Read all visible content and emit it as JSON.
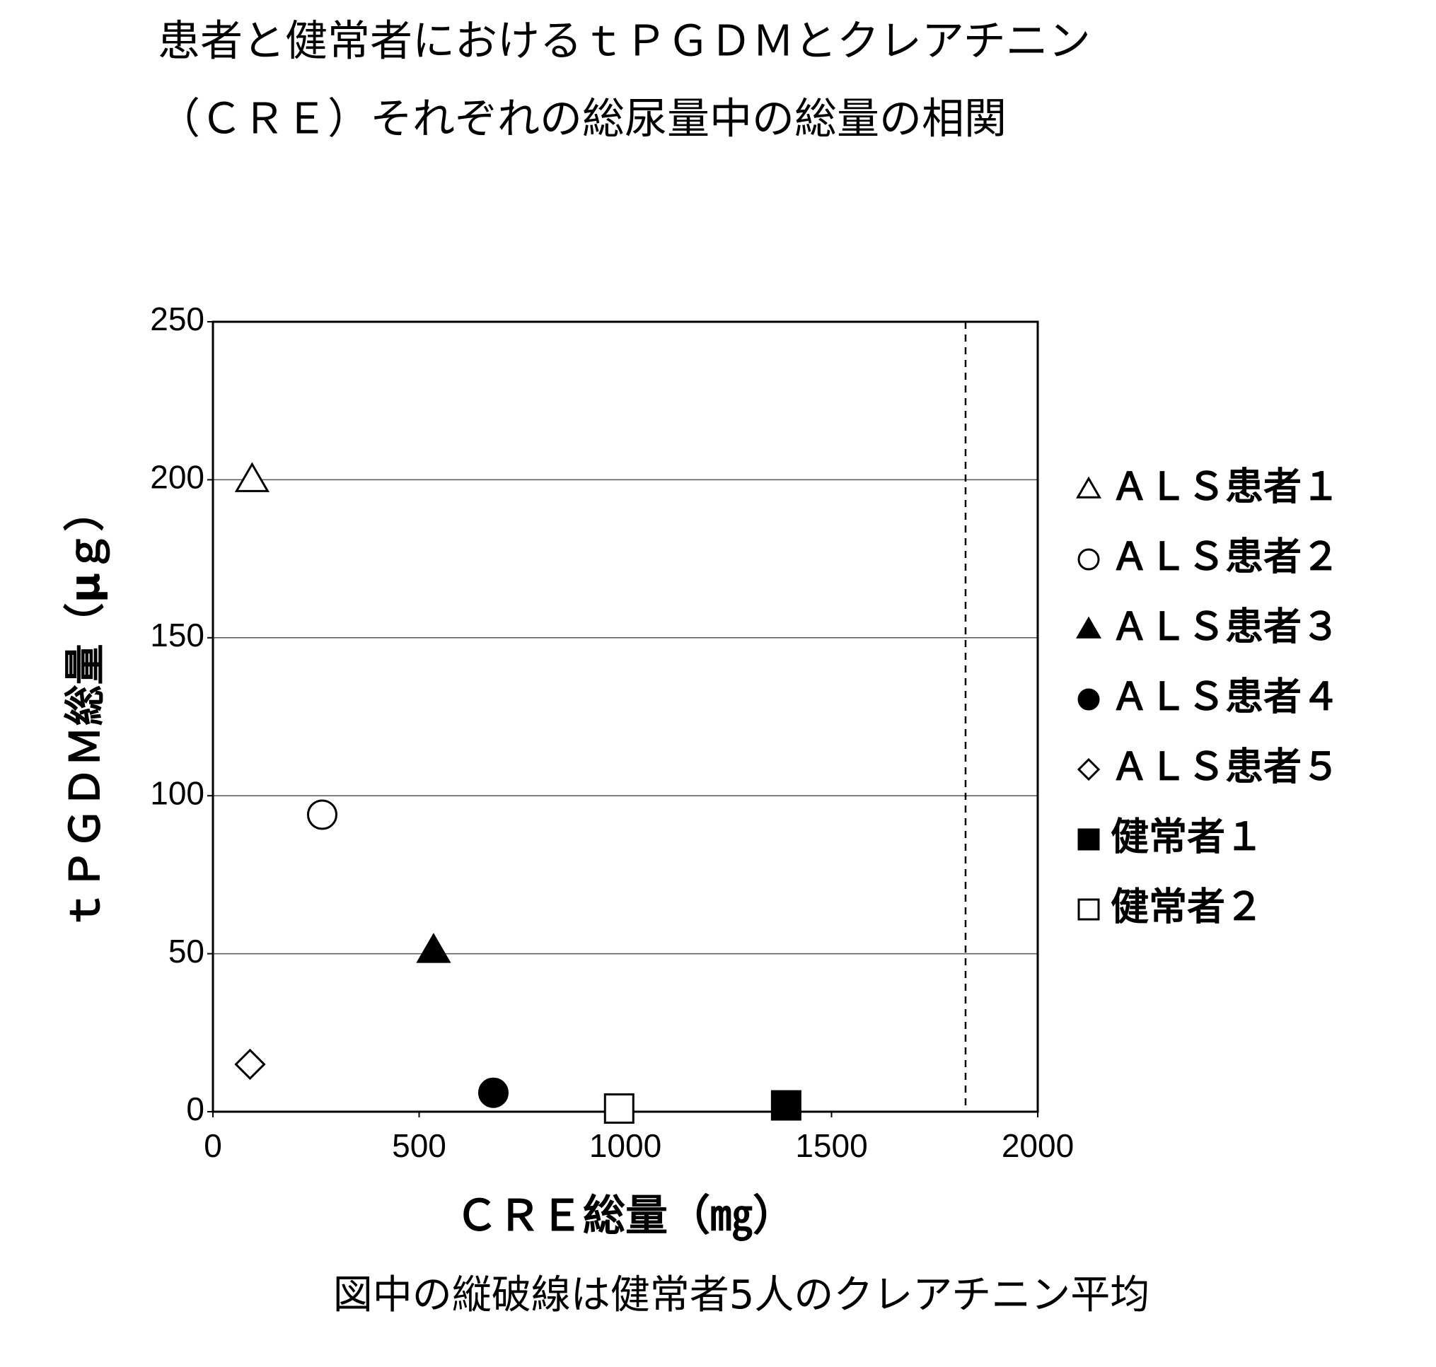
{
  "chart_data": {
    "type": "scatter",
    "title": [
      "患者と健常者におけるｔＰＧＤＭとクレアチニン",
      "（ＣＲＥ）それぞれの総尿量中の総量の相関"
    ],
    "x_label": "ＣＲＥ総量（㎎）",
    "y_label": "ｔＰＧＤＭ総量（μｇ）",
    "note": "図中の縦破線は健常者5人のクレアチニン平均",
    "xlim": [
      0,
      2000
    ],
    "xticks": [
      0,
      500,
      1000,
      1500,
      2000
    ],
    "ylim": [
      0,
      250
    ],
    "yticks": [
      0,
      50,
      100,
      150,
      200,
      250
    ],
    "grid": true,
    "vline_x": 1825,
    "legend": "right",
    "series": [
      {
        "name": "ＡＬＳ患者１",
        "marker": "triangle",
        "filled": false,
        "color": "#000000",
        "x": [
          95
        ],
        "values": [
          200
        ]
      },
      {
        "name": "ＡＬＳ患者２",
        "marker": "circle",
        "filled": false,
        "color": "#000000",
        "x": [
          265
        ],
        "values": [
          94
        ]
      },
      {
        "name": "ＡＬＳ患者３",
        "marker": "triangle",
        "filled": true,
        "color": "#000000",
        "x": [
          535
        ],
        "values": [
          51
        ]
      },
      {
        "name": "ＡＬＳ患者４",
        "marker": "circle",
        "filled": true,
        "color": "#000000",
        "x": [
          680
        ],
        "values": [
          6
        ]
      },
      {
        "name": "ＡＬＳ患者５",
        "marker": "diamond",
        "filled": false,
        "color": "#000000",
        "x": [
          90
        ],
        "values": [
          15
        ]
      },
      {
        "name": "健常者１",
        "marker": "square",
        "filled": true,
        "color": "#000000",
        "x": [
          1390
        ],
        "values": [
          2
        ]
      },
      {
        "name": "健常者２",
        "marker": "square",
        "filled": false,
        "color": "#000000",
        "x": [
          985
        ],
        "values": [
          1
        ]
      }
    ]
  }
}
